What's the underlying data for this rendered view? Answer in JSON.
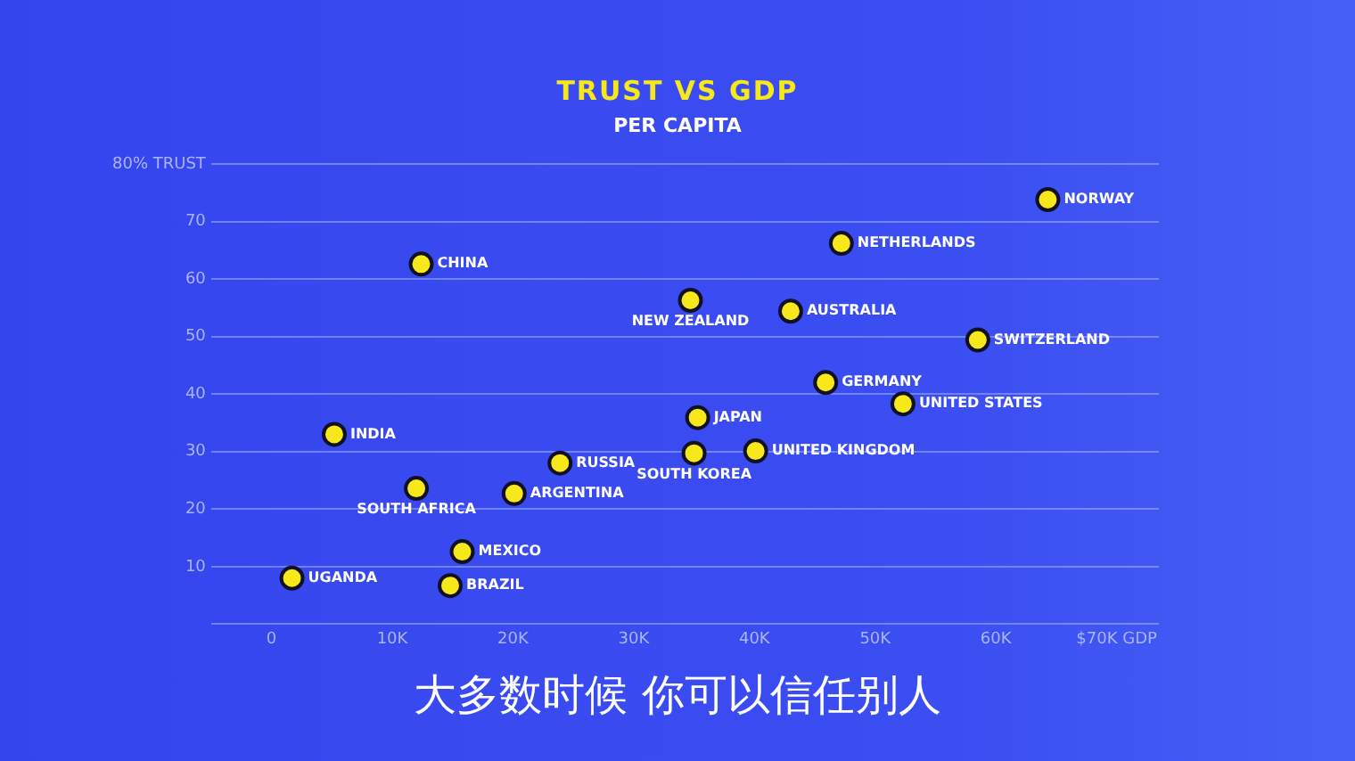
{
  "chart_data": {
    "type": "scatter",
    "title": "TRUST VS GDP",
    "subtitle": "PER CAPITA",
    "annotations": [
      "大多数时候 你可以信任别人"
    ],
    "series": [
      {
        "name": "NORWAY",
        "color": "#f7e81c",
        "x": [
          64300
        ],
        "values": [
          73.8
        ]
      },
      {
        "name": "NETHERLANDS",
        "color": "#f7e81c",
        "x": [
          47200
        ],
        "values": [
          66.2
        ]
      },
      {
        "name": "CHINA",
        "color": "#f7e81c",
        "x": [
          12400
        ],
        "values": [
          62.6
        ]
      },
      {
        "name": "NEW ZEALAND",
        "color": "#f7e81c",
        "x": [
          34700
        ],
        "values": [
          56.3
        ]
      },
      {
        "name": "AUSTRALIA",
        "color": "#f7e81c",
        "x": [
          43000
        ],
        "values": [
          54.4
        ]
      },
      {
        "name": "SWITZERLAND",
        "color": "#f7e81c",
        "x": [
          58500
        ],
        "values": [
          49.4
        ]
      },
      {
        "name": "GERMANY",
        "color": "#f7e81c",
        "x": [
          45900
        ],
        "values": [
          42
        ]
      },
      {
        "name": "UNITED STATES",
        "color": "#f7e81c",
        "x": [
          52300
        ],
        "values": [
          38.3
        ]
      },
      {
        "name": "JAPAN",
        "color": "#f7e81c",
        "x": [
          35300
        ],
        "values": [
          35.9
        ]
      },
      {
        "name": "INDIA",
        "color": "#f7e81c",
        "x": [
          5200
        ],
        "values": [
          33
        ]
      },
      {
        "name": "UNITED KINGDOM",
        "color": "#f7e81c",
        "x": [
          40100
        ],
        "values": [
          30.1
        ]
      },
      {
        "name": "SOUTH KOREA",
        "color": "#f7e81c",
        "x": [
          35000
        ],
        "values": [
          29.7
        ]
      },
      {
        "name": "RUSSIA",
        "color": "#f7e81c",
        "x": [
          23900
        ],
        "values": [
          28
        ]
      },
      {
        "name": "SOUTH AFRICA",
        "color": "#f7e81c",
        "x": [
          12000
        ],
        "values": [
          23.6
        ]
      },
      {
        "name": "ARGENTINA",
        "color": "#f7e81c",
        "x": [
          20100
        ],
        "values": [
          22.7
        ]
      },
      {
        "name": "MEXICO",
        "color": "#f7e81c",
        "x": [
          15800
        ],
        "values": [
          12.6
        ]
      },
      {
        "name": "UGANDA",
        "color": "#f7e81c",
        "x": [
          1700
        ],
        "values": [
          8
        ]
      },
      {
        "name": "BRAZIL",
        "color": "#f7e81c",
        "x": [
          14800
        ],
        "values": [
          6.7
        ]
      }
    ],
    "xlim": [
      -5000,
      73500
    ],
    "xticks": [
      0,
      {
        "value": 10000,
        "label": "10K"
      },
      {
        "value": 20000,
        "label": "20K"
      },
      {
        "value": 30000,
        "label": "30K"
      },
      {
        "value": 40000,
        "label": "40K"
      },
      {
        "value": 50000,
        "label": "50K"
      },
      {
        "value": 60000,
        "label": "60K"
      },
      {
        "value": 70000,
        "label": "$70K GDP"
      }
    ],
    "ylim": [
      0,
      80
    ],
    "yticks": [
      {
        "value": 0,
        "label": null
      },
      10,
      20,
      30,
      40,
      50,
      60,
      70,
      {
        "value": 80,
        "label": "80% TRUST"
      }
    ],
    "grid": "y",
    "legend": false,
    "marker": "circle"
  }
}
